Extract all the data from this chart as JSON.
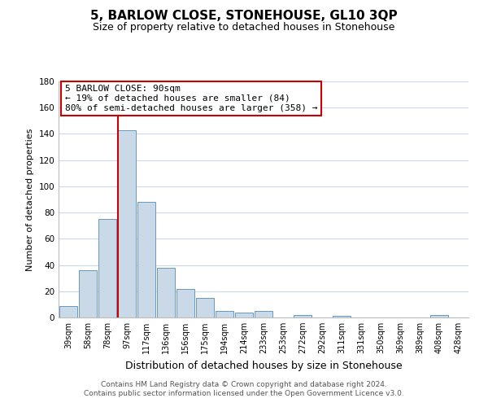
{
  "title": "5, BARLOW CLOSE, STONEHOUSE, GL10 3QP",
  "subtitle": "Size of property relative to detached houses in Stonehouse",
  "xlabel": "Distribution of detached houses by size in Stonehouse",
  "ylabel": "Number of detached properties",
  "bar_labels": [
    "39sqm",
    "58sqm",
    "78sqm",
    "97sqm",
    "117sqm",
    "136sqm",
    "156sqm",
    "175sqm",
    "194sqm",
    "214sqm",
    "233sqm",
    "253sqm",
    "272sqm",
    "292sqm",
    "311sqm",
    "331sqm",
    "350sqm",
    "369sqm",
    "389sqm",
    "408sqm",
    "428sqm"
  ],
  "bar_values": [
    9,
    36,
    75,
    143,
    88,
    38,
    22,
    15,
    5,
    4,
    5,
    0,
    2,
    0,
    1,
    0,
    0,
    0,
    0,
    2,
    0
  ],
  "bar_color": "#c9d9e8",
  "bar_edge_color": "#6699bb",
  "vline_color": "#cc0000",
  "vline_x_index": 3,
  "bar_width": 0.9,
  "ylim": [
    0,
    180
  ],
  "yticks": [
    0,
    20,
    40,
    60,
    80,
    100,
    120,
    140,
    160,
    180
  ],
  "annotation_title": "5 BARLOW CLOSE: 90sqm",
  "annotation_line1": "← 19% of detached houses are smaller (84)",
  "annotation_line2": "80% of semi-detached houses are larger (358) →",
  "annotation_box_facecolor": "#ffffff",
  "annotation_box_edgecolor": "#cc0000",
  "footer_line1": "Contains HM Land Registry data © Crown copyright and database right 2024.",
  "footer_line2": "Contains public sector information licensed under the Open Government Licence v3.0.",
  "bg_color": "#ffffff",
  "grid_color": "#c8d8e8",
  "title_fontsize": 11,
  "subtitle_fontsize": 9,
  "ylabel_fontsize": 8,
  "xlabel_fontsize": 9,
  "tick_fontsize": 7,
  "annotation_fontsize": 8,
  "footer_fontsize": 6.5
}
